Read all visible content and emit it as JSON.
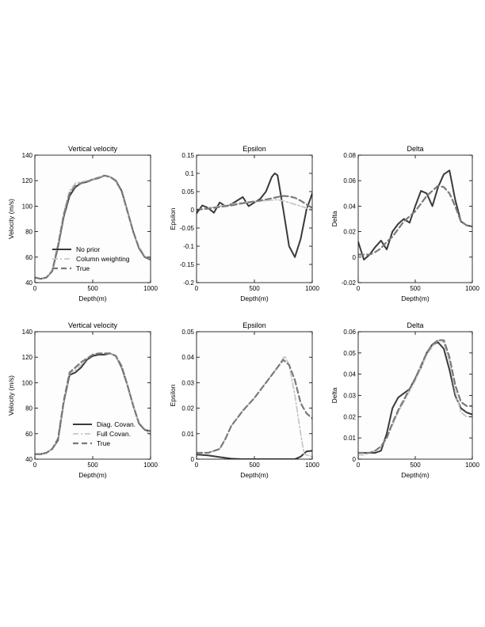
{
  "chart_data": [
    {
      "type": "line",
      "title": "Vertical velocity",
      "xlabel": "Depth(m)",
      "ylabel": "Velocity (m/s)",
      "xlim": [
        0,
        1000
      ],
      "ylim": [
        40,
        140
      ],
      "xticks": [
        "0",
        "500",
        "1000"
      ],
      "yticks": [
        "40",
        "60",
        "80",
        "100",
        "120",
        "140"
      ],
      "grid": false,
      "legend": "bottom-left",
      "series": [
        {
          "name": "No prior",
          "color": "#3a3a3a",
          "style": "solid",
          "x": [
            0,
            50,
            100,
            150,
            200,
            250,
            300,
            350,
            400,
            450,
            500,
            550,
            600,
            650,
            700,
            750,
            800,
            850,
            900,
            950,
            1000
          ],
          "y": [
            44,
            43,
            44,
            49,
            68,
            92,
            108,
            115,
            118,
            119,
            121,
            122,
            124,
            123,
            120,
            112,
            96,
            80,
            67,
            60,
            58
          ]
        },
        {
          "name": "Column weighting",
          "color": "#c8c8c8",
          "style": "dashdot",
          "x": [
            0,
            50,
            100,
            150,
            200,
            250,
            300,
            350,
            400,
            450,
            500,
            550,
            600,
            650,
            700,
            750,
            800,
            850,
            900,
            950,
            1000
          ],
          "y": [
            44,
            43,
            44,
            50,
            70,
            95,
            112,
            118,
            119,
            120,
            121,
            123,
            124,
            123,
            119,
            111,
            95,
            80,
            68,
            61,
            59
          ]
        },
        {
          "name": "True",
          "color": "#7a7a7a",
          "style": "dashed",
          "x": [
            0,
            50,
            100,
            150,
            200,
            250,
            300,
            350,
            400,
            450,
            500,
            550,
            600,
            650,
            700,
            750,
            800,
            850,
            900,
            950,
            1000
          ],
          "y": [
            44,
            43,
            44,
            49,
            69,
            93,
            110,
            116,
            118,
            119,
            121,
            122,
            124,
            123,
            120,
            112,
            96,
            80,
            67,
            60,
            58
          ]
        }
      ]
    },
    {
      "type": "line",
      "title": "Epsilon",
      "xlabel": "Depth(m)",
      "ylabel": "Epsilon",
      "xlim": [
        0,
        1000
      ],
      "ylim": [
        -0.2,
        0.15
      ],
      "xticks": [
        "0",
        "500",
        "1000"
      ],
      "yticks": [
        "-0.2",
        "-0.15",
        "-0.1",
        "-0.05",
        "0",
        "0.05",
        "0.1",
        "0.15"
      ],
      "grid": false,
      "series": [
        {
          "color": "#3a3a3a",
          "style": "solid",
          "x": [
            0,
            50,
            100,
            150,
            200,
            250,
            300,
            350,
            400,
            450,
            500,
            550,
            600,
            650,
            675,
            700,
            750,
            800,
            850,
            900,
            950,
            1000
          ],
          "y": [
            -0.01,
            0.012,
            0.005,
            -0.008,
            0.02,
            0.01,
            0.015,
            0.025,
            0.035,
            0.01,
            0.02,
            0.03,
            0.05,
            0.09,
            0.1,
            0.095,
            0.0,
            -0.1,
            -0.13,
            -0.08,
            0.0,
            0.045
          ]
        },
        {
          "color": "#c8c8c8",
          "style": "dashdot",
          "x": [
            0,
            100,
            200,
            300,
            400,
            500,
            600,
            700,
            800,
            900,
            1000
          ],
          "y": [
            0.0,
            0.005,
            0.01,
            0.015,
            0.02,
            0.022,
            0.025,
            0.028,
            0.02,
            0.01,
            0.0
          ]
        },
        {
          "color": "#7a7a7a",
          "style": "dashed",
          "x": [
            0,
            100,
            200,
            300,
            400,
            500,
            600,
            700,
            750,
            800,
            850,
            900,
            1000
          ],
          "y": [
            0.0,
            0.003,
            0.008,
            0.012,
            0.018,
            0.023,
            0.028,
            0.035,
            0.038,
            0.037,
            0.033,
            0.025,
            0.005
          ]
        }
      ]
    },
    {
      "type": "line",
      "title": "Delta",
      "xlabel": "Depth(m)",
      "ylabel": "Delta",
      "xlim": [
        0,
        1000
      ],
      "ylim": [
        -0.02,
        0.08
      ],
      "xticks": [
        "0",
        "500",
        "1000"
      ],
      "yticks": [
        "-0.02",
        "0",
        "0.02",
        "0.04",
        "0.06",
        "0.08"
      ],
      "grid": false,
      "series": [
        {
          "color": "#3a3a3a",
          "style": "solid",
          "x": [
            0,
            50,
            100,
            150,
            200,
            250,
            300,
            350,
            400,
            450,
            500,
            550,
            600,
            650,
            700,
            750,
            800,
            850,
            900,
            950,
            1000
          ],
          "y": [
            0.012,
            -0.002,
            0.002,
            0.008,
            0.013,
            0.006,
            0.02,
            0.026,
            0.03,
            0.027,
            0.04,
            0.052,
            0.05,
            0.04,
            0.055,
            0.065,
            0.068,
            0.045,
            0.028,
            0.025,
            0.024
          ]
        },
        {
          "color": "#7a7a7a",
          "style": "dashed",
          "x": [
            0,
            50,
            100,
            150,
            200,
            250,
            300,
            350,
            400,
            450,
            500,
            550,
            600,
            650,
            700,
            750,
            800,
            850,
            900,
            950,
            1000
          ],
          "y": [
            0.002,
            0.002,
            0.002,
            0.004,
            0.007,
            0.012,
            0.016,
            0.022,
            0.028,
            0.032,
            0.036,
            0.042,
            0.048,
            0.052,
            0.056,
            0.055,
            0.05,
            0.04,
            0.028,
            0.025,
            0.024
          ]
        }
      ]
    },
    {
      "type": "line",
      "title": "Vertical velocity",
      "xlabel": "Depth(m)",
      "ylabel": "Velocity (m/s)",
      "xlim": [
        0,
        1000
      ],
      "ylim": [
        40,
        140
      ],
      "xticks": [
        "0",
        "500",
        "1000"
      ],
      "yticks": [
        "40",
        "60",
        "80",
        "100",
        "120",
        "140"
      ],
      "grid": false,
      "legend": "bottom-right",
      "series": [
        {
          "name": "Diag. Covan.",
          "color": "#3a3a3a",
          "style": "solid",
          "x": [
            0,
            50,
            100,
            150,
            200,
            250,
            300,
            350,
            400,
            450,
            500,
            550,
            600,
            650,
            700,
            750,
            800,
            850,
            900,
            950,
            1000
          ],
          "y": [
            44,
            44,
            45,
            48,
            55,
            85,
            106,
            108,
            112,
            118,
            121,
            122,
            122,
            123,
            121,
            112,
            98,
            82,
            68,
            63,
            62
          ]
        },
        {
          "name": "Full Covan.",
          "color": "#c8c8c8",
          "style": "dashdot",
          "x": [
            0,
            50,
            100,
            150,
            200,
            250,
            300,
            350,
            400,
            450,
            500,
            550,
            600,
            650,
            700,
            750,
            800,
            850,
            900,
            950,
            1000
          ],
          "y": [
            44,
            44,
            45,
            48,
            56,
            86,
            107,
            110,
            114,
            119,
            122,
            123,
            123,
            123,
            121,
            113,
            98,
            82,
            68,
            63,
            59
          ]
        },
        {
          "name": "True",
          "color": "#7a7a7a",
          "style": "dashed",
          "x": [
            0,
            50,
            100,
            150,
            200,
            250,
            300,
            350,
            400,
            450,
            500,
            550,
            600,
            650,
            700,
            750,
            800,
            850,
            900,
            950,
            1000
          ],
          "y": [
            44,
            44,
            45,
            48,
            56,
            86,
            108,
            112,
            116,
            119,
            122,
            123,
            123,
            123,
            121,
            113,
            98,
            82,
            68,
            63,
            62
          ]
        }
      ]
    },
    {
      "type": "line",
      "title": "Epsilon",
      "xlabel": "Depth(m)",
      "ylabel": "Epsilon",
      "xlim": [
        0,
        1000
      ],
      "ylim": [
        0,
        0.05
      ],
      "xticks": [
        "0",
        "500",
        "1000"
      ],
      "yticks": [
        "0",
        "0.01",
        "0.02",
        "0.03",
        "0.04",
        "0.05"
      ],
      "grid": false,
      "series": [
        {
          "color": "#3a3a3a",
          "style": "solid",
          "x": [
            0,
            100,
            200,
            300,
            400,
            500,
            600,
            700,
            800,
            850,
            900,
            950,
            1000
          ],
          "y": [
            0.0018,
            0.0015,
            0.0008,
            0.0002,
            0.0,
            0.0,
            0.0,
            0.0,
            0.0,
            0.0,
            0.001,
            0.003,
            0.0033
          ]
        },
        {
          "color": "#c8c8c8",
          "style": "dashdot",
          "x": [
            0,
            100,
            200,
            250,
            300,
            400,
            500,
            600,
            700,
            760,
            800,
            850,
            900,
            930,
            1000
          ],
          "y": [
            0.0025,
            0.0025,
            0.004,
            0.008,
            0.013,
            0.019,
            0.024,
            0.03,
            0.036,
            0.0405,
            0.037,
            0.025,
            0.01,
            0.002,
            0.001
          ]
        },
        {
          "color": "#7a7a7a",
          "style": "dashed",
          "x": [
            0,
            100,
            200,
            250,
            300,
            400,
            500,
            600,
            700,
            750,
            800,
            850,
            900,
            950,
            1000
          ],
          "y": [
            0.0025,
            0.0025,
            0.004,
            0.008,
            0.013,
            0.019,
            0.024,
            0.03,
            0.036,
            0.039,
            0.037,
            0.031,
            0.022,
            0.018,
            0.016
          ]
        }
      ]
    },
    {
      "type": "line",
      "title": "Delta",
      "xlabel": "Depth(m)",
      "ylabel": "Delta",
      "xlim": [
        0,
        1000
      ],
      "ylim": [
        0,
        0.06
      ],
      "xticks": [
        "0",
        "500",
        "1000"
      ],
      "yticks": [
        "0",
        "0.01",
        "0.02",
        "0.03",
        "0.04",
        "0.05",
        "0.06"
      ],
      "grid": false,
      "series": [
        {
          "color": "#3a3a3a",
          "style": "solid",
          "x": [
            0,
            50,
            100,
            150,
            200,
            250,
            300,
            350,
            400,
            450,
            500,
            550,
            600,
            650,
            700,
            750,
            800,
            850,
            900,
            950,
            1000
          ],
          "y": [
            0.003,
            0.003,
            0.003,
            0.003,
            0.004,
            0.012,
            0.024,
            0.029,
            0.031,
            0.033,
            0.038,
            0.043,
            0.05,
            0.054,
            0.055,
            0.052,
            0.042,
            0.03,
            0.024,
            0.022,
            0.021
          ]
        },
        {
          "color": "#c8c8c8",
          "style": "dashdot",
          "x": [
            0,
            50,
            100,
            150,
            200,
            250,
            300,
            350,
            400,
            450,
            500,
            550,
            600,
            650,
            700,
            750,
            800,
            850,
            900,
            950,
            1000
          ],
          "y": [
            0.002,
            0.002,
            0.003,
            0.004,
            0.006,
            0.01,
            0.016,
            0.022,
            0.027,
            0.032,
            0.037,
            0.043,
            0.049,
            0.053,
            0.056,
            0.055,
            0.046,
            0.032,
            0.022,
            0.02,
            0.02
          ]
        },
        {
          "color": "#7a7a7a",
          "style": "dashed",
          "x": [
            0,
            50,
            100,
            150,
            200,
            250,
            300,
            350,
            400,
            450,
            500,
            550,
            600,
            650,
            700,
            750,
            800,
            850,
            900,
            950,
            1000
          ],
          "y": [
            0.003,
            0.003,
            0.003,
            0.004,
            0.006,
            0.01,
            0.017,
            0.023,
            0.028,
            0.033,
            0.038,
            0.044,
            0.05,
            0.054,
            0.056,
            0.056,
            0.048,
            0.035,
            0.027,
            0.025,
            0.025
          ]
        }
      ]
    }
  ]
}
